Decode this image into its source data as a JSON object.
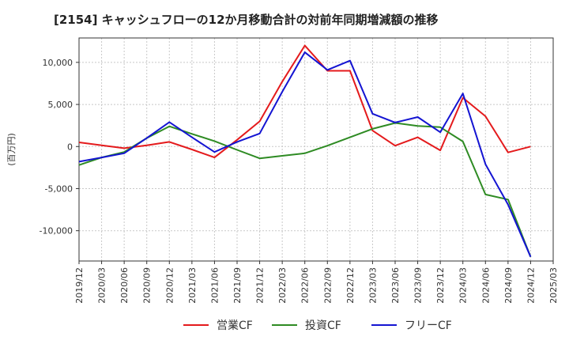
{
  "chart_data": {
    "type": "line",
    "title": "[2154]  キャッシュフローの12か月移動合計の対前年同期増減額の推移",
    "ylabel": "(百万円)",
    "xlabel": "",
    "ylim": [
      -13600,
      12900
    ],
    "yticks": [
      10000,
      5000,
      0,
      -5000,
      -10000
    ],
    "ytick_labels": [
      "10,000",
      "5,000",
      "0",
      "-5,000",
      "-10,000"
    ],
    "grid": true,
    "legend_position": "bottom",
    "categories": [
      "2019/12",
      "2020/03",
      "2020/06",
      "2020/09",
      "2020/12",
      "2021/03",
      "2021/06",
      "2021/09",
      "2021/12",
      "2022/03",
      "2022/06",
      "2022/09",
      "2022/12",
      "2023/03",
      "2023/06",
      "2023/09",
      "2023/12",
      "2024/03",
      "2024/06",
      "2024/09",
      "2024/12",
      "2025/03"
    ],
    "series": [
      {
        "name": "営業CF",
        "color": "#e41a1c",
        "values": [
          500,
          150,
          -200,
          150,
          550,
          -350,
          -1300,
          800,
          3000,
          7700,
          12000,
          9000,
          9000,
          1900,
          100,
          1100,
          -450,
          5800,
          3600,
          -700,
          0,
          null
        ]
      },
      {
        "name": "投資CF",
        "color": "#2e8b23",
        "values": [
          -2200,
          -1300,
          -650,
          1000,
          2400,
          1500,
          650,
          -400,
          -1400,
          -1100,
          -800,
          100,
          1100,
          2100,
          2800,
          2450,
          2300,
          600,
          -5700,
          -6300,
          -13100,
          null
        ]
      },
      {
        "name": "フリーCF",
        "color": "#1414d2",
        "values": [
          -1800,
          -1300,
          -800,
          1000,
          2900,
          1100,
          -650,
          550,
          1550,
          6500,
          11200,
          9100,
          10200,
          3900,
          2850,
          3500,
          1700,
          6300,
          -2100,
          -6900,
          -13100,
          null
        ]
      }
    ]
  }
}
